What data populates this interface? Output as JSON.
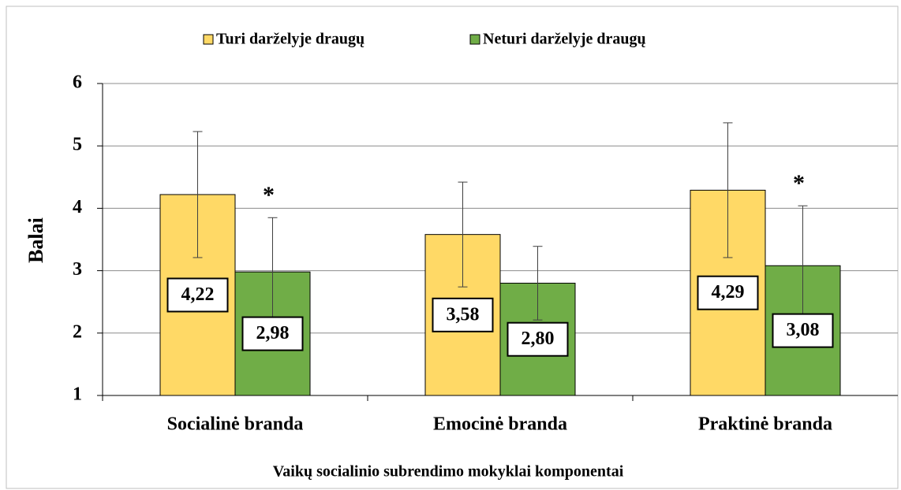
{
  "chart_data": {
    "type": "bar",
    "categories": [
      "Socialinė branda",
      "Emocinė branda",
      "Praktinė branda"
    ],
    "series": [
      {
        "name": "Turi darželyje draugų",
        "color": "#ffd966",
        "values": [
          4.22,
          3.58,
          4.29
        ],
        "value_labels": [
          "4,22",
          "3,58",
          "4,29"
        ],
        "errors": [
          1.01,
          0.84,
          1.08
        ]
      },
      {
        "name": "Neturi darželyje draugų",
        "color": "#70ad47",
        "values": [
          2.98,
          2.8,
          3.08
        ],
        "value_labels": [
          "2,98",
          "2,80",
          "3,08"
        ],
        "errors": [
          0.87,
          0.59,
          0.96
        ]
      }
    ],
    "annotations": [
      {
        "text": "*",
        "category": "Socialinė branda",
        "series": "Neturi darželyje draugų"
      },
      {
        "text": "*",
        "category": "Praktinė branda",
        "series": "Neturi darželyje draugų"
      }
    ],
    "ylabel": "Balai",
    "xlabel": "Vaikų socialinio subrendimo mokyklai komponentai",
    "ylim": [
      1,
      6
    ],
    "yticks": [
      1,
      2,
      3,
      4,
      5,
      6
    ],
    "grid": true,
    "legend": "top"
  }
}
